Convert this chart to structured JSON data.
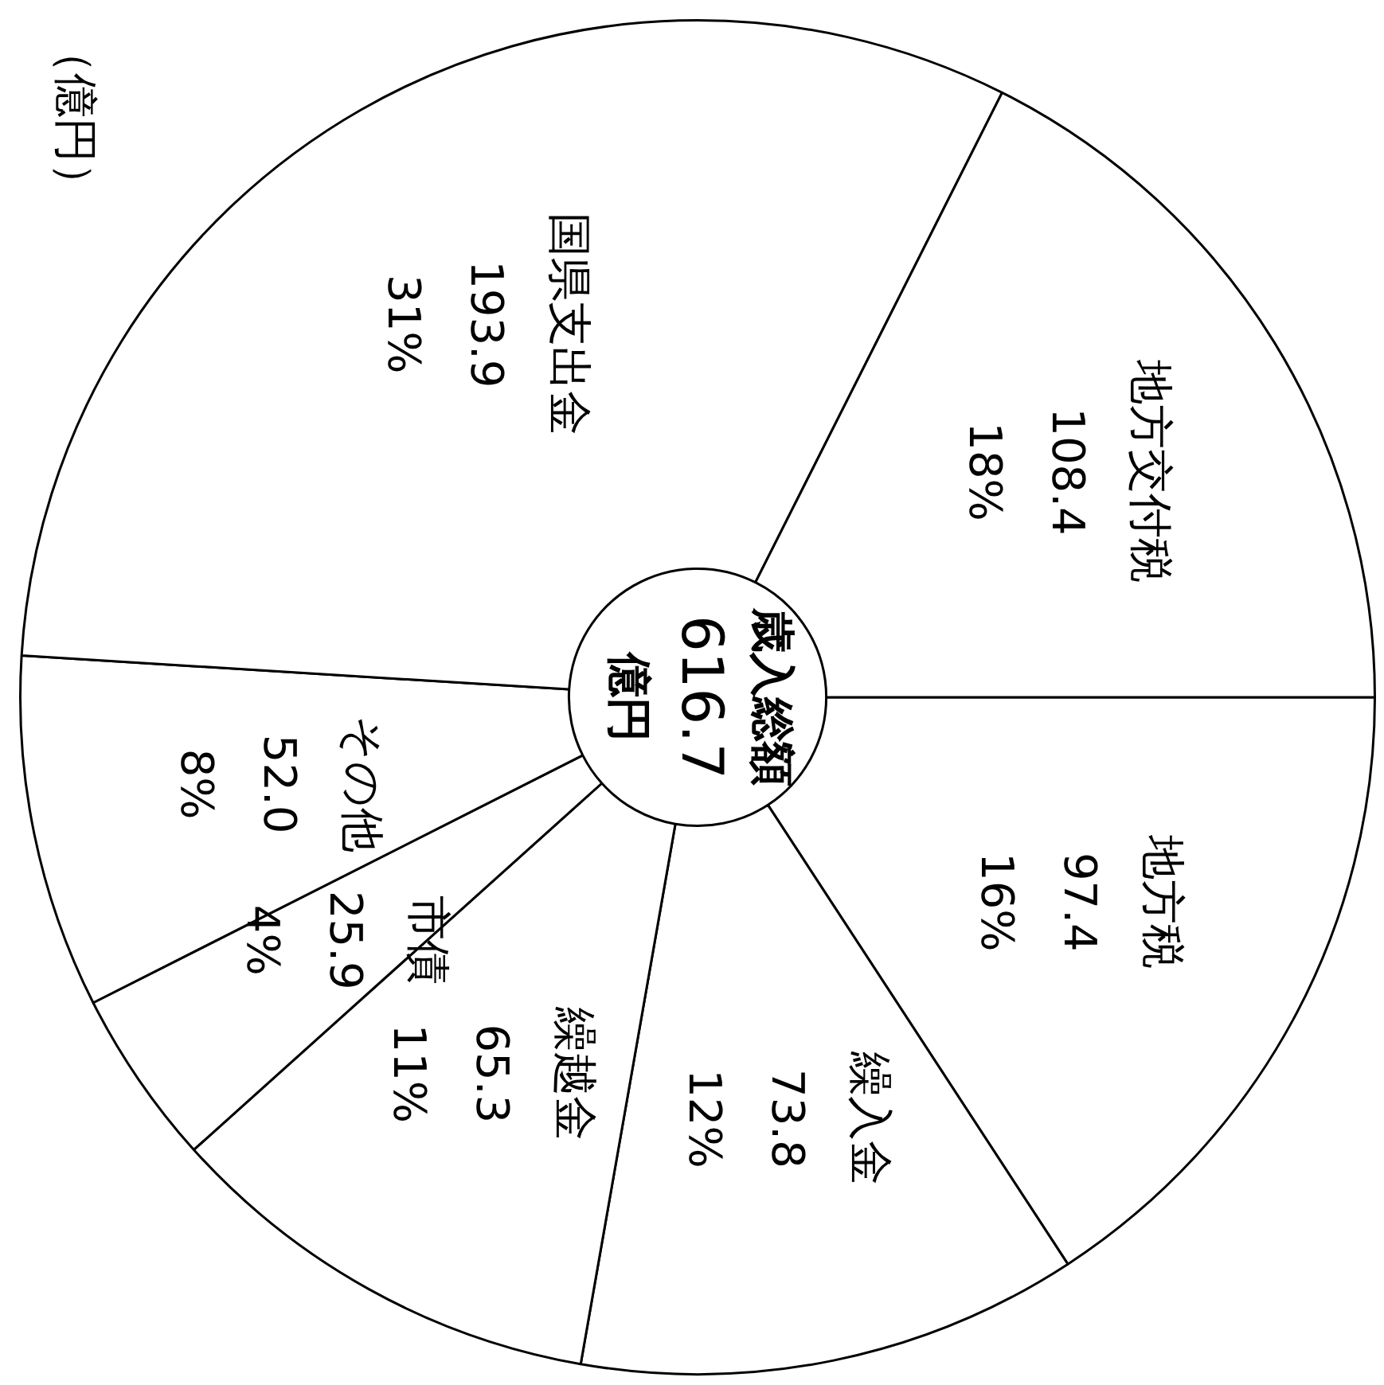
{
  "chart_data": {
    "type": "donut",
    "title": "歳入総額",
    "subtitle": "616.7 億円",
    "categories": [
      "地方税",
      "繰入金",
      "繰越金",
      "市債",
      "その他",
      "国県支出金",
      "地方交付税"
    ],
    "values": [
      97.4,
      73.8,
      65.3,
      25.9,
      52.0,
      193.9,
      108.4
    ],
    "colors": [
      "#ffffff",
      "#ffffff",
      "#ffffff",
      "#ffffff",
      "#ffffff",
      "#ffffff",
      "#ffffff"
    ],
    "value_labels": [
      "97.4\n16%",
      "73.8\n12%",
      "65.3\n11%",
      "25.9\n4%",
      "52.0\n8%",
      "193.9\n31%",
      "108.4\n18%"
    ],
    "legend": false,
    "annotations": [
      "（億円）"
    ]
  }
}
